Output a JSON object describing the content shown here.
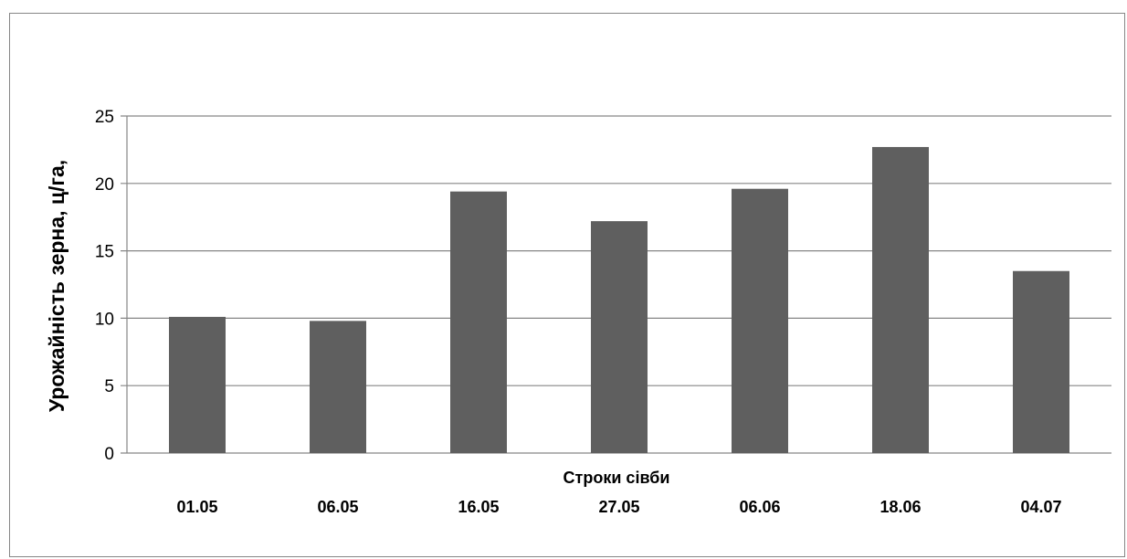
{
  "chart_data": {
    "type": "bar",
    "title": "",
    "xlabel": "Строки сівби",
    "ylabel": "Урожайність зерна, ц/га,",
    "categories": [
      "01.05",
      "06.05",
      "16.05",
      "27.05",
      "06.06",
      "18.06",
      "04.07"
    ],
    "values": [
      10.1,
      9.8,
      19.4,
      17.2,
      19.6,
      22.7,
      13.5
    ],
    "ylim": [
      0,
      25
    ],
    "yticks": [
      "0",
      "5",
      "10",
      "15",
      "20",
      "25"
    ],
    "grid": true,
    "legend": "none",
    "bar_color": "#5f5f5f",
    "grid_color": "#868686"
  }
}
